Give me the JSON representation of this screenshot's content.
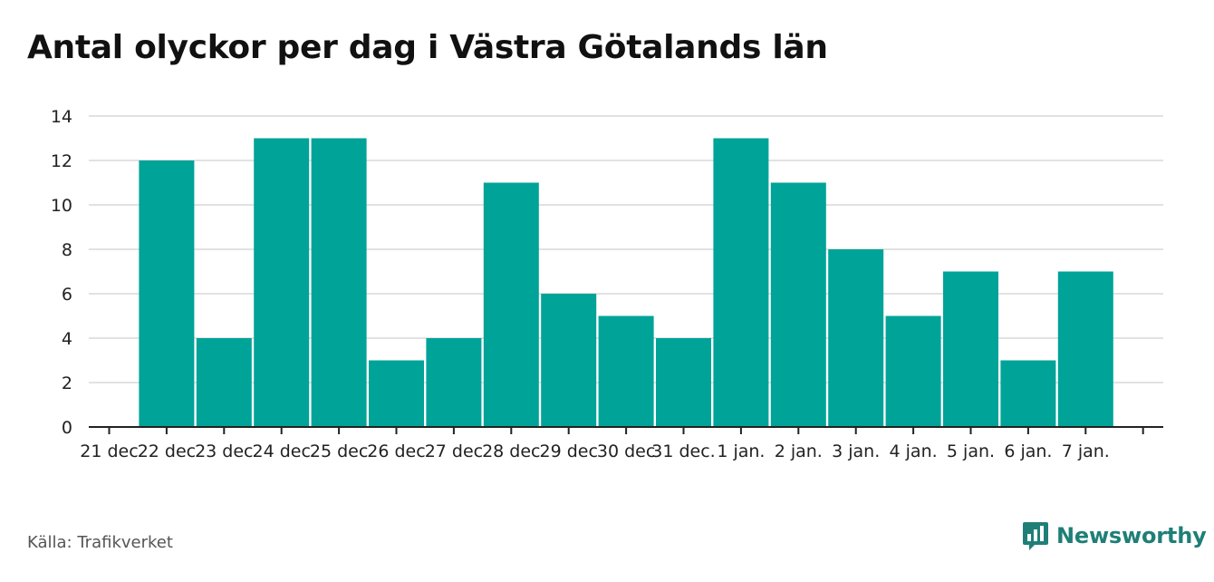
{
  "title": "Antal olyckor per dag i Västra Götalands län",
  "source": "Källa: Trafikverket",
  "brand": {
    "name": "Newsworthy",
    "icon": "newsworthy-logo-icon"
  },
  "colors": {
    "bar": "#00a398",
    "grid": "#d9d9d9",
    "axis": "#222222",
    "brand": "#1f7f77"
  },
  "chart_data": {
    "type": "bar",
    "categories": [
      "21 dec",
      "22 dec",
      "23 dec",
      "24 dec",
      "25 dec",
      "26 dec",
      "27 dec",
      "28 dec",
      "29 dec",
      "30 dec",
      "31 dec.",
      "1 jan.",
      "2 jan.",
      "3 jan.",
      "4 jan.",
      "5 jan.",
      "6 jan.",
      "7 jan."
    ],
    "values": [
      null,
      12,
      4,
      13,
      13,
      3,
      4,
      11,
      6,
      5,
      4,
      13,
      11,
      8,
      5,
      7,
      3,
      7
    ],
    "yticks": [
      0,
      2,
      4,
      6,
      8,
      10,
      12,
      14
    ],
    "ylim": [
      0,
      14
    ],
    "xlabel": "",
    "ylabel": "",
    "grid": true
  }
}
